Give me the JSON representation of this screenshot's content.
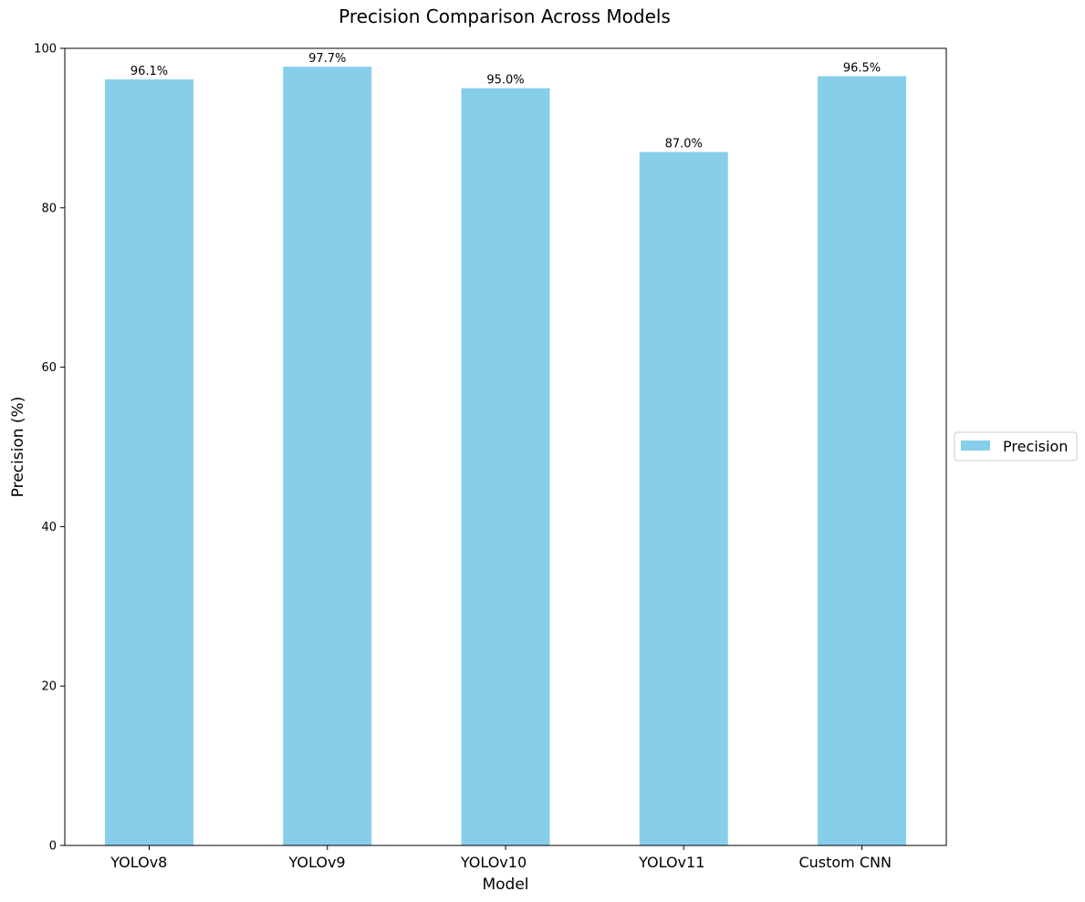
{
  "chart_data": {
    "type": "bar",
    "title": "Precision Comparison Across Models",
    "xlabel": "Model",
    "ylabel": "Precision (%)",
    "categories": [
      "YOLOv8",
      "YOLOv9",
      "YOLOv10",
      "YOLOv11",
      "Custom CNN"
    ],
    "series": [
      {
        "name": "Precision",
        "values": [
          96.1,
          97.7,
          95.0,
          87.0,
          96.5
        ],
        "data_labels": [
          "96.1%",
          "97.7%",
          "95.0%",
          "87.0%",
          "96.5%"
        ],
        "color": "#87ceeb"
      }
    ],
    "ylim": [
      0,
      100
    ],
    "yticks": [
      0,
      20,
      40,
      60,
      80,
      100
    ],
    "grid": false,
    "legend_placement": "right"
  }
}
